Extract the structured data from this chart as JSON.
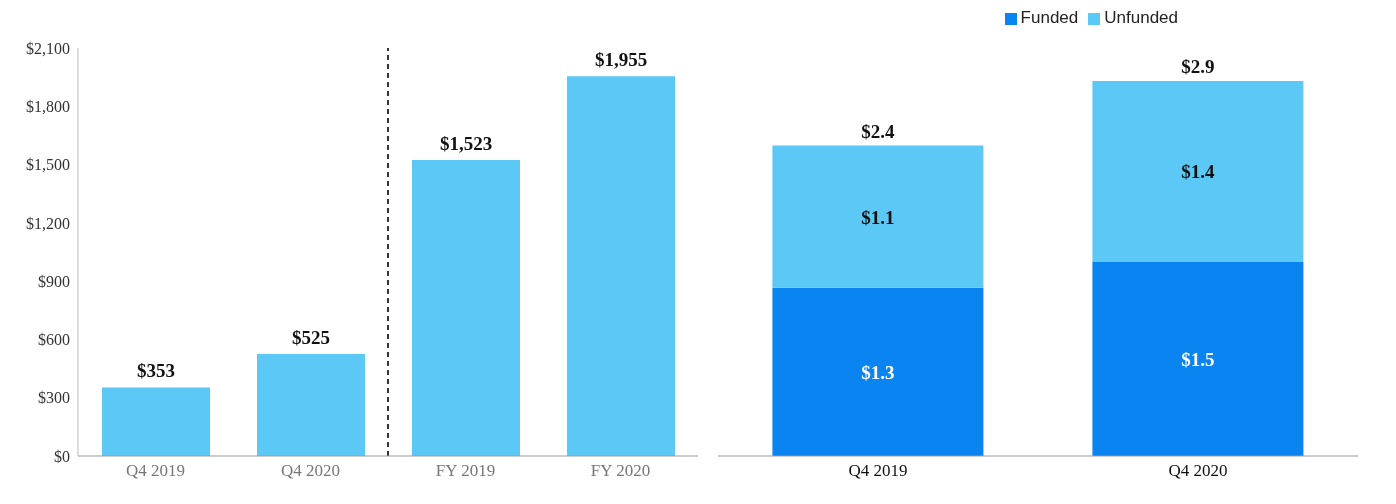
{
  "chart_data": [
    {
      "type": "bar",
      "categories": [
        "Q4 2019",
        "Q4 2020",
        "FY 2019",
        "FY 2020"
      ],
      "series": [
        {
          "color": "#5bc8f5",
          "values": [
            353,
            525,
            1523,
            1955
          ],
          "value_labels": [
            "$353",
            "$525",
            "$1,523",
            "$1,955"
          ]
        }
      ],
      "ylim": [
        0,
        2100
      ],
      "yticks": [
        {
          "value": 0,
          "label": "$0"
        },
        {
          "value": 300,
          "label": "$300"
        },
        {
          "value": 600,
          "label": "$600"
        },
        {
          "value": 900,
          "label": "$900"
        },
        {
          "value": 1200,
          "label": "$1,200"
        },
        {
          "value": 1500,
          "label": "$1,500"
        },
        {
          "value": 1800,
          "label": "$1,800"
        },
        {
          "value": 2100,
          "label": "$2,100"
        }
      ],
      "legend": false
    },
    {
      "type": "bar",
      "stacked": true,
      "categories": [
        "Q4 2019",
        "Q4 2020"
      ],
      "series": [
        {
          "name": "Funded",
          "color": "#0a84f0",
          "values": [
            1.3,
            1.5
          ],
          "value_labels": [
            "$1.3",
            "$1.5"
          ]
        },
        {
          "name": "Unfunded",
          "color": "#5bc8f5",
          "values": [
            1.1,
            1.4
          ],
          "value_labels": [
            "$1.1",
            "$1.4"
          ]
        }
      ],
      "totals": [
        "$2.4",
        "$2.9"
      ],
      "legend": "top right"
    }
  ]
}
